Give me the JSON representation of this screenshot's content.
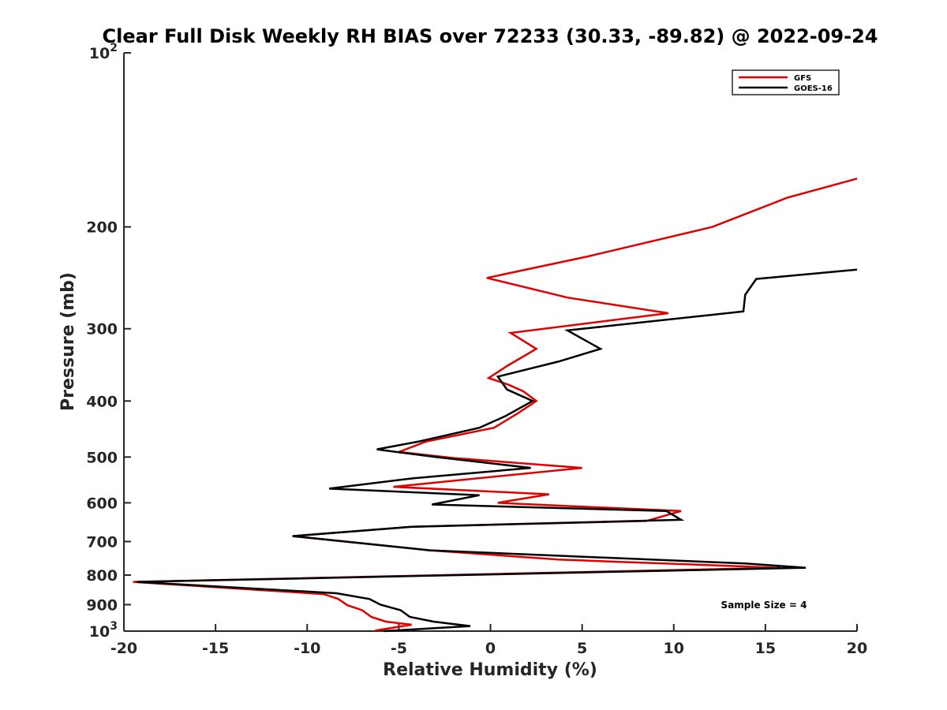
{
  "chart_data": {
    "type": "line",
    "title": "Clear Full Disk Weekly RH BIAS over 72233 (30.33, -89.82) @ 2022-09-24",
    "xlabel": "Relative Humidity (%)",
    "ylabel": "Pressure (mb)",
    "xlim": [
      -20,
      20
    ],
    "ylim": [
      100,
      1000
    ],
    "yscale": "log",
    "yreversed": true,
    "xticks": [
      -20,
      -15,
      -10,
      -5,
      0,
      5,
      10,
      15,
      20
    ],
    "xtick_labels": [
      "-20",
      "-15",
      "-10",
      "-5",
      "0",
      "5",
      "10",
      "15",
      "20"
    ],
    "yticks": [
      {
        "value": 100,
        "base": "10",
        "exp": "2"
      },
      {
        "value": 200,
        "label": "200"
      },
      {
        "value": 300,
        "label": "300"
      },
      {
        "value": 400,
        "label": "400"
      },
      {
        "value": 500,
        "label": "500"
      },
      {
        "value": 600,
        "label": "600"
      },
      {
        "value": 700,
        "label": "700"
      },
      {
        "value": 800,
        "label": "800"
      },
      {
        "value": 900,
        "label": "900"
      },
      {
        "value": 1000,
        "base": "10",
        "exp": "3"
      }
    ],
    "grid": false,
    "legend_position": "top-right",
    "annotation": "Sample Size = 4",
    "series": [
      {
        "name": "GFS",
        "color": "#e00000",
        "points": [
          [
            20,
            165
          ],
          [
            16.2,
            178
          ],
          [
            12.1,
            200
          ],
          [
            5.3,
            225
          ],
          [
            -0.2,
            245
          ],
          [
            4.2,
            265
          ],
          [
            9.7,
            282
          ],
          [
            1.1,
            305
          ],
          [
            2.5,
            325
          ],
          [
            0.9,
            348
          ],
          [
            -0.1,
            365
          ],
          [
            1.0,
            375
          ],
          [
            1.8,
            385
          ],
          [
            2.5,
            400
          ],
          [
            1.5,
            420
          ],
          [
            0.2,
            445
          ],
          [
            -3.5,
            470
          ],
          [
            -5.0,
            490
          ],
          [
            -2.0,
            502
          ],
          [
            5.0,
            522
          ],
          [
            -5.3,
            563
          ],
          [
            3.2,
            580
          ],
          [
            0.4,
            600
          ],
          [
            10.4,
            620
          ],
          [
            8.5,
            645
          ],
          [
            -4.3,
            660
          ],
          [
            -10.8,
            685
          ],
          [
            -3.3,
            725
          ],
          [
            3.7,
            752
          ],
          [
            15.8,
            777
          ],
          [
            -19.5,
            822
          ],
          [
            -9.1,
            863
          ],
          [
            -8.3,
            880
          ],
          [
            -7.8,
            902
          ],
          [
            -7.0,
            920
          ],
          [
            -6.5,
            945
          ],
          [
            -5.7,
            963
          ],
          [
            -4.3,
            975
          ],
          [
            -6.3,
            998
          ]
        ]
      },
      {
        "name": "GOES-16",
        "color": "#000000",
        "points": [
          [
            20,
            237
          ],
          [
            14.5,
            246
          ],
          [
            13.9,
            262
          ],
          [
            13.8,
            280
          ],
          [
            4.2,
            302
          ],
          [
            6.0,
            325
          ],
          [
            3.7,
            342
          ],
          [
            0.4,
            363
          ],
          [
            0.9,
            382
          ],
          [
            2.3,
            400
          ],
          [
            0.8,
            425
          ],
          [
            -0.6,
            445
          ],
          [
            -3.9,
            470
          ],
          [
            -6.2,
            485
          ],
          [
            -3.0,
            500
          ],
          [
            2.2,
            522
          ],
          [
            -4.2,
            544
          ],
          [
            -8.8,
            567
          ],
          [
            -0.6,
            582
          ],
          [
            -3.2,
            604
          ],
          [
            9.6,
            620
          ],
          [
            10.4,
            642
          ],
          [
            -4.3,
            660
          ],
          [
            -10.8,
            685
          ],
          [
            -3.3,
            725
          ],
          [
            13.9,
            764
          ],
          [
            17.2,
            777
          ],
          [
            -19.3,
            822
          ],
          [
            -8.4,
            860
          ],
          [
            -6.6,
            880
          ],
          [
            -6.0,
            900
          ],
          [
            -4.9,
            920
          ],
          [
            -4.4,
            945
          ],
          [
            -3.1,
            963
          ],
          [
            -1.1,
            980
          ],
          [
            -5.8,
            1000
          ]
        ]
      }
    ]
  }
}
